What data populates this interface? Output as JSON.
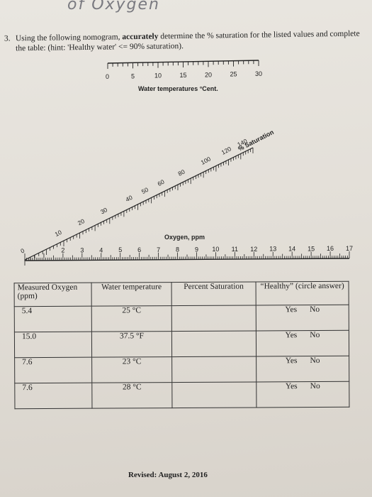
{
  "header": {
    "handwriting": "of Oxygen"
  },
  "question": {
    "number": "3.",
    "text_before": "Using the following nomogram, ",
    "emphasis": "accurately",
    "text_after": " determine the % saturation for the listed values and complete the table: (hint: 'Healthy water' <= 90% saturation)."
  },
  "nomogram": {
    "water_temp": {
      "label": "Water temperatures °Cent.",
      "ticks": [
        "0",
        "5",
        "10",
        "15",
        "20",
        "25",
        "30"
      ]
    },
    "saturation": {
      "label": "% Saturation",
      "ticks": [
        "0",
        "10",
        "20",
        "30",
        "40",
        "50",
        "60",
        "80",
        "100",
        "120",
        "140"
      ]
    },
    "oxygen": {
      "label": "Oxygen, ppm",
      "ticks": [
        "1",
        "2",
        "3",
        "4",
        "5",
        "6",
        "7",
        "8",
        "9",
        "10",
        "11",
        "12",
        "13",
        "14",
        "15",
        "16",
        "17"
      ]
    }
  },
  "table": {
    "headers": [
      "Measured Oxygen (ppm)",
      "Water temperature",
      "Percent Saturation",
      "“Healthy” (circle answer)"
    ],
    "rows": [
      {
        "oxygen": "5.4",
        "temp": "25 °C",
        "saturation": "",
        "yes": "Yes",
        "no": "No"
      },
      {
        "oxygen": "15.0",
        "temp": "37.5 °F",
        "saturation": "",
        "yes": "Yes",
        "no": "No"
      },
      {
        "oxygen": "7.6",
        "temp": "23 °C",
        "saturation": "",
        "yes": "Yes",
        "no": "No"
      },
      {
        "oxygen": "7.6",
        "temp": "28 °C",
        "saturation": "",
        "yes": "Yes",
        "no": "No"
      }
    ]
  },
  "footer": {
    "revised": "Revised: August 2, 2016"
  }
}
